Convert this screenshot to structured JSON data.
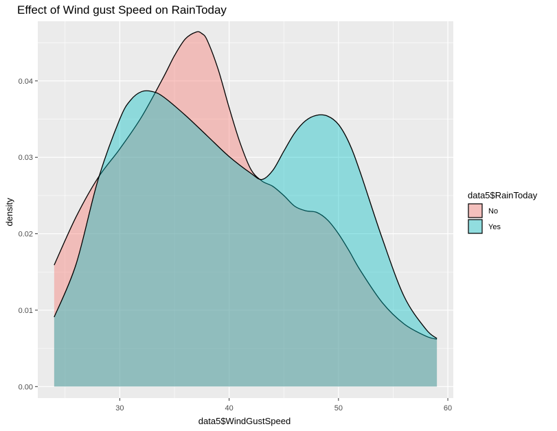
{
  "chart_data": {
    "type": "area",
    "subtype": "density",
    "title": "Effect of Wind gust Speed on RainToday",
    "xlabel": "data5$WindGustSpeed",
    "ylabel": "density",
    "xlim": [
      22.5,
      60.5
    ],
    "ylim": [
      -0.0015,
      0.0478
    ],
    "x_ticks": [
      30,
      40,
      50,
      60
    ],
    "x_tick_labels": [
      "30",
      "40",
      "50",
      "60"
    ],
    "y_ticks": [
      0.0,
      0.01,
      0.02,
      0.03,
      0.04
    ],
    "y_tick_labels": [
      "0.00",
      "0.01",
      "0.02",
      "0.03",
      "0.04"
    ],
    "grid": true,
    "legend": {
      "title": "data5$RainToday",
      "position": "right",
      "entries": [
        {
          "label": "No",
          "color": "#F8766D"
        },
        {
          "label": "Yes",
          "color": "#00BFC4"
        }
      ]
    },
    "series": [
      {
        "name": "No",
        "color": "#F8766D",
        "x": [
          24,
          26,
          28,
          30,
          32,
          34,
          35,
          36,
          37,
          37.5,
          38,
          39,
          40,
          41,
          42,
          43,
          44,
          45,
          46,
          47,
          48,
          49,
          50,
          51,
          52,
          54,
          56,
          58,
          59
        ],
        "y": [
          0.0159,
          0.0222,
          0.0273,
          0.0311,
          0.0353,
          0.0405,
          0.0433,
          0.0455,
          0.0464,
          0.0462,
          0.0453,
          0.0415,
          0.0365,
          0.0319,
          0.0284,
          0.0269,
          0.0262,
          0.025,
          0.0236,
          0.023,
          0.0228,
          0.0218,
          0.02,
          0.0177,
          0.0152,
          0.011,
          0.0082,
          0.0066,
          0.0062
        ]
      },
      {
        "name": "Yes",
        "color": "#00BFC4",
        "x": [
          24,
          26,
          28,
          30,
          31,
          32,
          33,
          34,
          36,
          38,
          40,
          42,
          43,
          44,
          45,
          46,
          47,
          48,
          49,
          50,
          51,
          52,
          54,
          56,
          58,
          59
        ],
        "y": [
          0.0091,
          0.016,
          0.027,
          0.035,
          0.0375,
          0.0386,
          0.0386,
          0.0379,
          0.0355,
          0.0328,
          0.0301,
          0.0279,
          0.0271,
          0.0283,
          0.0308,
          0.0332,
          0.0348,
          0.0355,
          0.0354,
          0.0343,
          0.0318,
          0.028,
          0.0194,
          0.0118,
          0.0075,
          0.0063
        ]
      }
    ]
  }
}
